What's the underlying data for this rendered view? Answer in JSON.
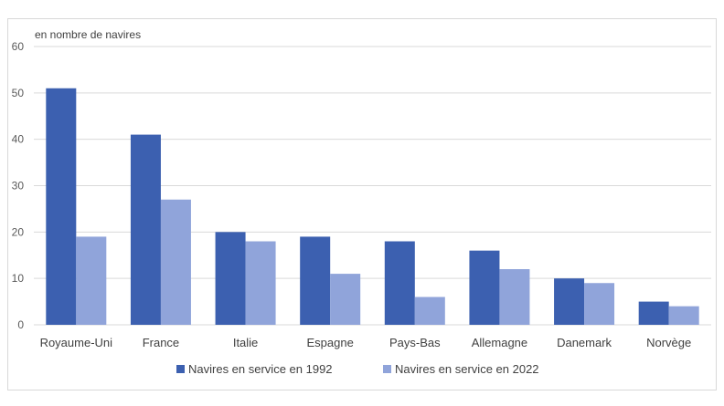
{
  "chart_data": {
    "type": "bar",
    "ylabel": "en nombre de navires",
    "ylim": [
      0,
      60
    ],
    "yticks": [
      0,
      10,
      20,
      30,
      40,
      50,
      60
    ],
    "grid": true,
    "legend_position": "bottom",
    "categories": [
      "Royaume-Uni",
      "France",
      "Italie",
      "Espagne",
      "Pays-Bas",
      "Allemagne",
      "Danemark",
      "Norvège"
    ],
    "series": [
      {
        "name": "Navires en service en 1992",
        "color": "#3c60b0",
        "values": [
          51,
          41,
          20,
          19,
          18,
          16,
          10,
          5
        ]
      },
      {
        "name": "Navires en service en 2022",
        "color": "#90a4da",
        "values": [
          19,
          27,
          18,
          11,
          6,
          12,
          9,
          4
        ]
      }
    ]
  }
}
